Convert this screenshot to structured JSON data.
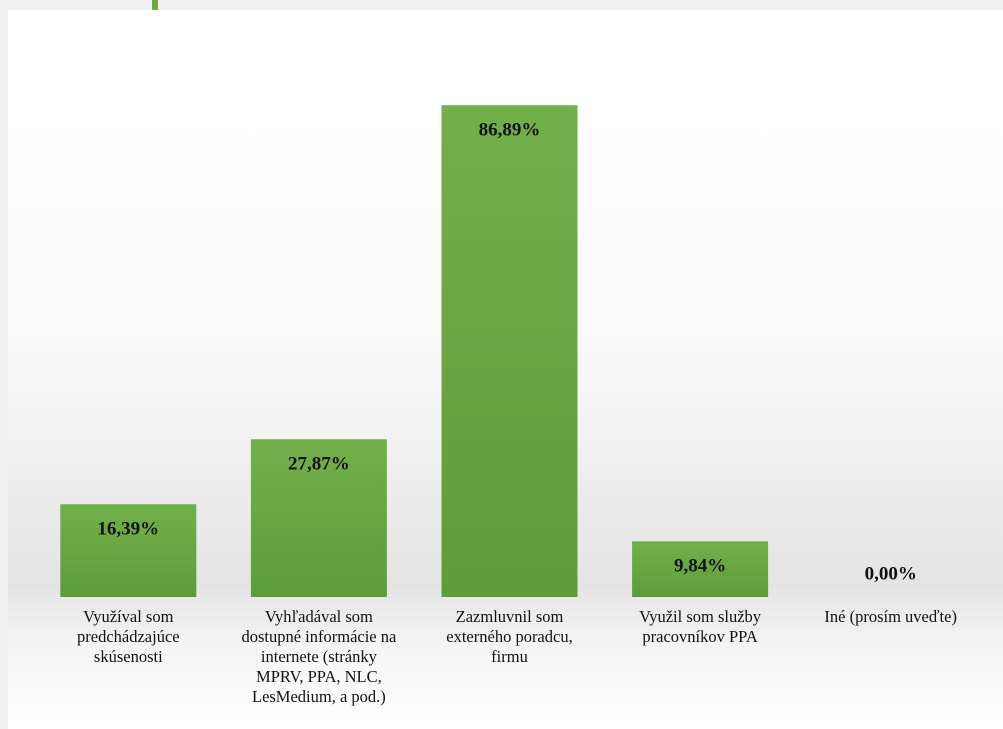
{
  "chart_data": {
    "type": "bar",
    "categories": [
      "Využíval som predchádzajúce skúsenosti",
      "Vyhľadával som dostupné informácie na internete (stránky MPRV, PPA, NLC, LesMedium, a pod.)",
      "Zazmluvnil som externého poradcu, firmu",
      "Využil som služby pracovníkov PPA",
      "Iné (prosím uveďte)"
    ],
    "values": [
      16.39,
      27.87,
      86.89,
      9.84,
      0.0
    ],
    "value_labels": [
      "16,39%",
      "27,87%",
      "86,89%",
      "9,84%",
      "0,00%"
    ],
    "color": "#6aa843",
    "ylim": [
      0,
      100
    ]
  }
}
